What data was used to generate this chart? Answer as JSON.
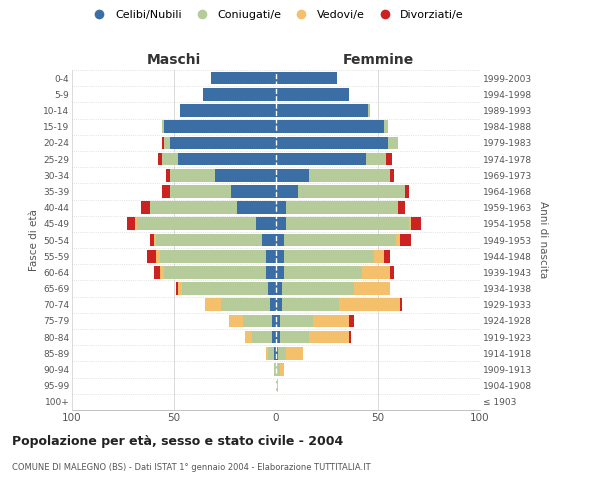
{
  "age_groups": [
    "100+",
    "95-99",
    "90-94",
    "85-89",
    "80-84",
    "75-79",
    "70-74",
    "65-69",
    "60-64",
    "55-59",
    "50-54",
    "45-49",
    "40-44",
    "35-39",
    "30-34",
    "25-29",
    "20-24",
    "15-19",
    "10-14",
    "5-9",
    "0-4"
  ],
  "birth_years": [
    "≤ 1903",
    "1904-1908",
    "1909-1913",
    "1914-1918",
    "1919-1923",
    "1924-1928",
    "1929-1933",
    "1934-1938",
    "1939-1943",
    "1944-1948",
    "1949-1953",
    "1954-1958",
    "1959-1963",
    "1964-1968",
    "1969-1973",
    "1974-1978",
    "1979-1983",
    "1984-1988",
    "1989-1993",
    "1994-1998",
    "1999-2003"
  ],
  "males_celibi": [
    0,
    0,
    0,
    1,
    2,
    2,
    3,
    4,
    5,
    5,
    7,
    10,
    19,
    22,
    30,
    48,
    52,
    55,
    47,
    36,
    32
  ],
  "males_coniugati": [
    0,
    0,
    1,
    3,
    10,
    14,
    24,
    42,
    50,
    52,
    52,
    58,
    43,
    30,
    22,
    8,
    3,
    1,
    0,
    0,
    0
  ],
  "males_vedovi": [
    0,
    0,
    0,
    1,
    3,
    7,
    8,
    2,
    2,
    2,
    1,
    1,
    0,
    0,
    0,
    0,
    0,
    0,
    0,
    0,
    0
  ],
  "males_divorziati": [
    0,
    0,
    0,
    0,
    0,
    0,
    0,
    1,
    3,
    4,
    2,
    4,
    4,
    4,
    2,
    2,
    1,
    0,
    0,
    0,
    0
  ],
  "females_nubili": [
    0,
    0,
    0,
    1,
    2,
    2,
    3,
    3,
    4,
    4,
    4,
    5,
    5,
    11,
    16,
    44,
    55,
    53,
    45,
    36,
    30
  ],
  "females_coniugate": [
    0,
    1,
    2,
    4,
    14,
    16,
    28,
    35,
    38,
    44,
    55,
    60,
    55,
    52,
    40,
    10,
    5,
    2,
    1,
    0,
    0
  ],
  "females_vedove": [
    0,
    0,
    2,
    8,
    20,
    18,
    30,
    18,
    14,
    5,
    2,
    1,
    0,
    0,
    0,
    0,
    0,
    0,
    0,
    0,
    0
  ],
  "females_divorziate": [
    0,
    0,
    0,
    0,
    1,
    2,
    1,
    0,
    2,
    3,
    5,
    5,
    3,
    2,
    2,
    3,
    0,
    0,
    0,
    0,
    0
  ],
  "color_celibi": "#3a6ea5",
  "color_coniugati": "#b5cb99",
  "color_vedovi": "#f5c06b",
  "color_divorziati": "#cc2222",
  "title1": "Popolazione per età, sesso e stato civile - 2004",
  "title2": "COMUNE DI MALEGNO (BS) - Dati ISTAT 1° gennaio 2004 - Elaborazione TUTTITALIA.IT",
  "label_maschi": "Maschi",
  "label_femmine": "Femmine",
  "ylabel_left": "Fasce di età",
  "ylabel_right": "Anni di nascita",
  "legend_labels": [
    "Celibi/Nubili",
    "Coniugati/e",
    "Vedovi/e",
    "Divorziati/e"
  ],
  "xlim": 100,
  "background_color": "#ffffff",
  "grid_color": "#cccccc"
}
